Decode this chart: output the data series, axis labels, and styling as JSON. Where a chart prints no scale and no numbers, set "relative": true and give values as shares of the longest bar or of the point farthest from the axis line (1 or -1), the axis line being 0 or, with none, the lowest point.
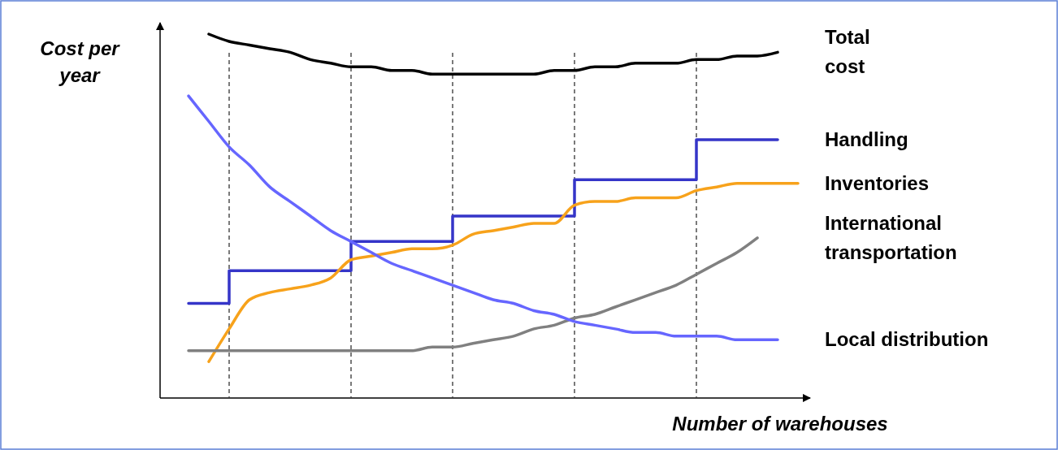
{
  "chart_data": {
    "type": "line",
    "relative": true,
    "xlabel": "Number of warehouses",
    "ylabel": "Cost per year",
    "legend": false,
    "grid": "x",
    "categories": [
      null,
      null,
      null,
      null,
      null,
      null,
      null,
      null,
      null,
      null,
      null,
      null,
      null,
      null,
      null,
      null,
      null,
      null,
      null,
      null,
      null,
      null,
      null,
      null,
      null,
      null,
      null,
      null,
      null,
      null,
      null
    ],
    "series": [
      {
        "name": "Total cost",
        "color": "#000000",
        "values": [
          null,
          1.0,
          0.98,
          0.97,
          0.96,
          0.95,
          0.93,
          0.92,
          0.91,
          0.91,
          0.9,
          0.9,
          0.89,
          0.89,
          0.89,
          0.89,
          0.89,
          0.89,
          0.9,
          0.9,
          0.91,
          0.91,
          0.92,
          0.92,
          0.92,
          0.93,
          0.93,
          0.94,
          0.94,
          0.95,
          null
        ]
      },
      {
        "name": "Handling",
        "type": "step",
        "color": "#3535c8",
        "values": [
          0.26,
          0.26,
          0.35,
          0.35,
          0.35,
          0.35,
          0.35,
          0.35,
          0.43,
          0.43,
          0.43,
          0.43,
          0.43,
          0.5,
          0.5,
          0.5,
          0.5,
          0.5,
          0.5,
          0.6,
          0.6,
          0.6,
          0.6,
          0.6,
          0.6,
          0.71,
          0.71,
          0.71,
          0.71,
          0.71,
          null
        ]
      },
      {
        "name": "Inventories",
        "color": "#f7a21b",
        "values": [
          null,
          0.1,
          0.19,
          0.27,
          0.29,
          0.3,
          0.31,
          0.33,
          0.38,
          0.39,
          0.4,
          0.41,
          0.41,
          0.42,
          0.45,
          0.46,
          0.47,
          0.48,
          0.48,
          0.53,
          0.54,
          0.54,
          0.55,
          0.55,
          0.55,
          0.57,
          0.58,
          0.59,
          0.59,
          0.59,
          0.59
        ]
      },
      {
        "name": "International transportation",
        "color": "#808080",
        "values": [
          0.13,
          0.13,
          0.13,
          0.13,
          0.13,
          0.13,
          0.13,
          0.13,
          0.13,
          0.13,
          0.13,
          0.13,
          0.14,
          0.14,
          0.15,
          0.16,
          0.17,
          0.19,
          0.2,
          0.22,
          0.23,
          0.25,
          0.27,
          0.29,
          0.31,
          0.34,
          0.37,
          0.4,
          0.44,
          null,
          null
        ]
      },
      {
        "name": "Local distribution",
        "color": "#6666ff",
        "values": [
          0.83,
          0.76,
          0.69,
          0.64,
          0.58,
          0.54,
          0.5,
          0.46,
          0.43,
          0.4,
          0.37,
          0.35,
          0.33,
          0.31,
          0.29,
          0.27,
          0.26,
          0.24,
          0.23,
          0.21,
          0.2,
          0.19,
          0.18,
          0.18,
          0.17,
          0.17,
          0.17,
          0.16,
          0.16,
          0.16,
          null
        ]
      }
    ]
  }
}
